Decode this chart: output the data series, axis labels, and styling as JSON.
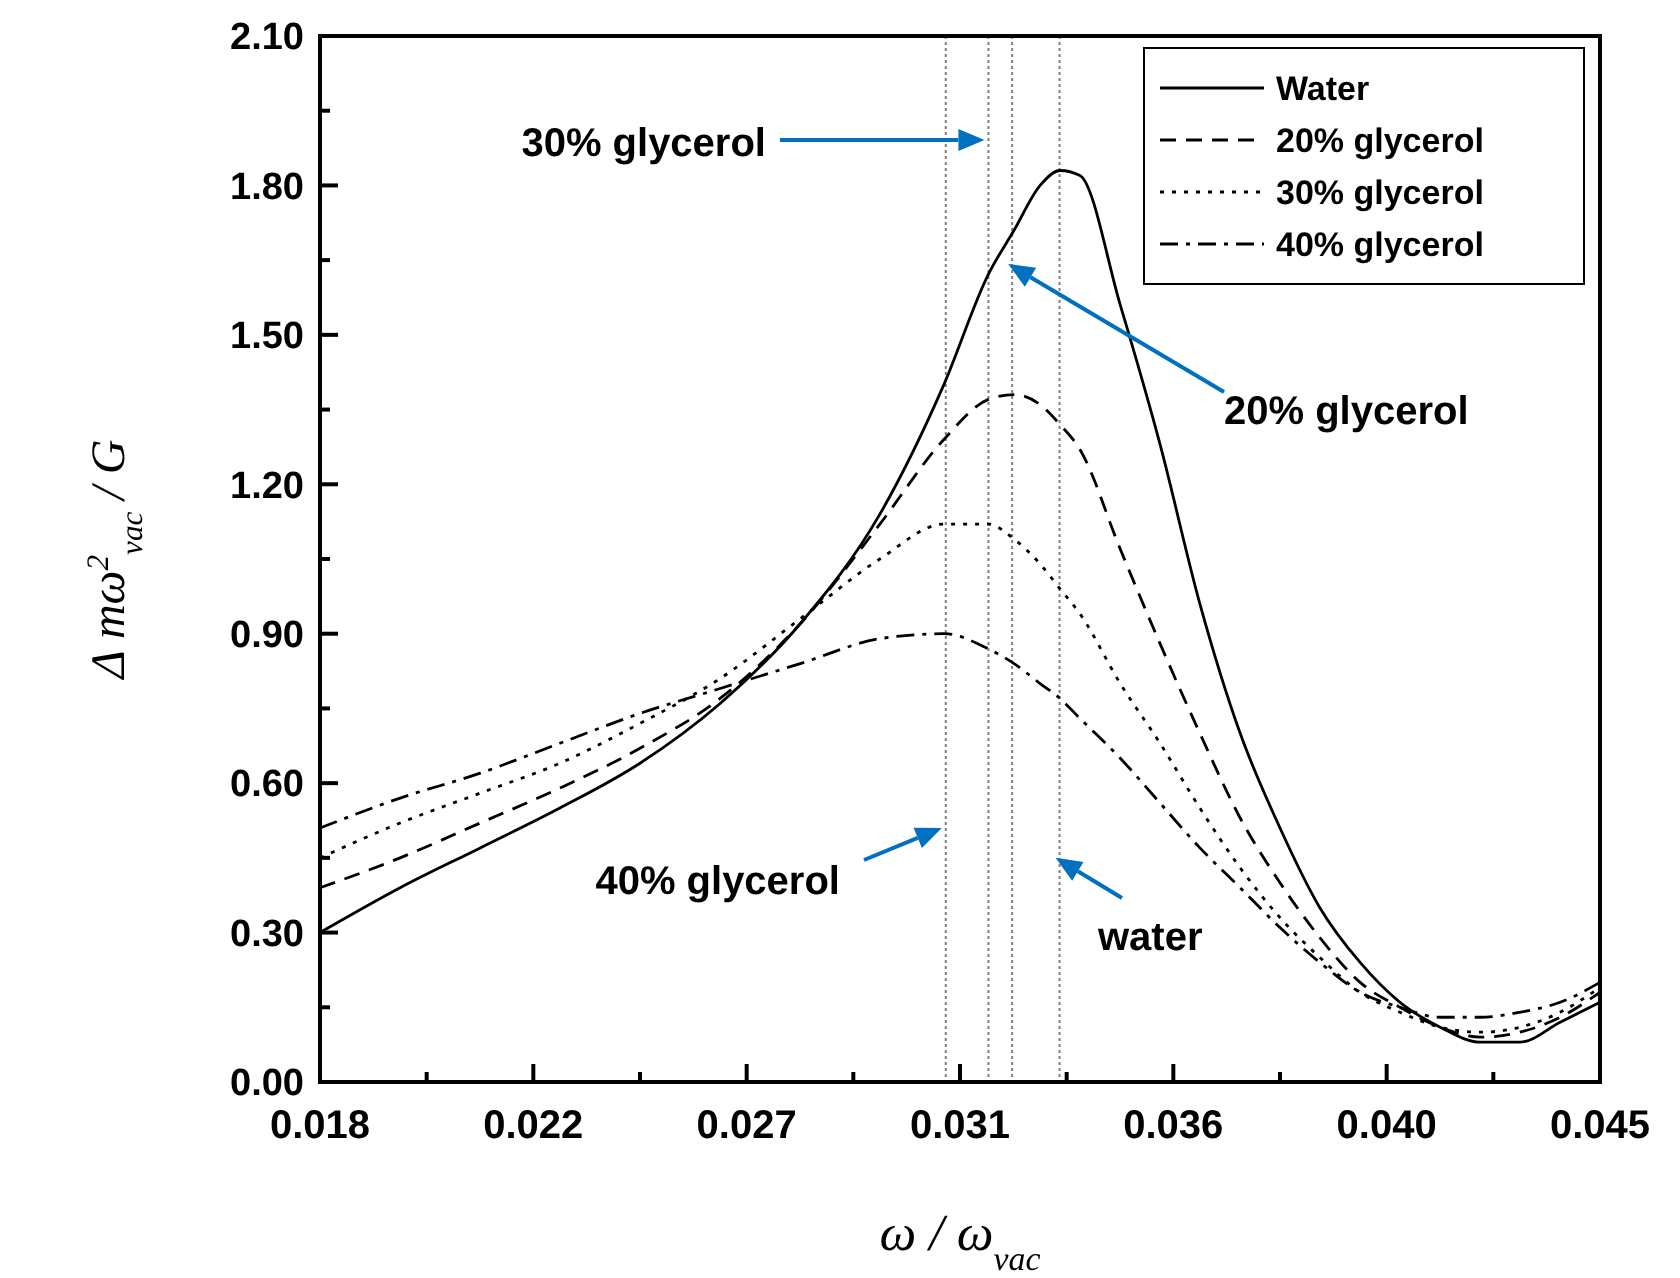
{
  "chart_data": {
    "type": "line",
    "xlabel": "ω / ω$_{vac}$",
    "ylabel": "Δ mω$^{2}$$_{vac}$ / G",
    "x": [
      0.018,
      0.01969,
      0.02138,
      0.02306,
      0.02475,
      0.02644,
      0.02813,
      0.02981,
      0.03116,
      0.03209,
      0.03264,
      0.03319,
      0.03361,
      0.03403,
      0.03488,
      0.03572,
      0.03656,
      0.03741,
      0.03825,
      0.03909,
      0.03994,
      0.04078,
      0.04163,
      0.04247,
      0.04331,
      0.04416,
      0.045
    ],
    "series": [
      {
        "name": "Water",
        "color": "#000000",
        "line_style": "solid",
        "values": [
          0.3,
          0.39,
          0.47,
          0.55,
          0.64,
          0.76,
          0.92,
          1.14,
          1.4,
          1.62,
          1.71,
          1.8,
          1.83,
          1.82,
          1.56,
          1.28,
          0.96,
          0.7,
          0.51,
          0.35,
          0.24,
          0.16,
          0.11,
          0.08,
          0.08,
          0.12,
          0.16
        ]
      },
      {
        "name": "20% glycerol",
        "color": "#000000",
        "line_style": "dashed",
        "values": [
          0.39,
          0.45,
          0.52,
          0.59,
          0.67,
          0.77,
          0.92,
          1.12,
          1.29,
          1.37,
          1.38,
          1.36,
          1.32,
          1.27,
          1.07,
          0.88,
          0.7,
          0.53,
          0.4,
          0.29,
          0.2,
          0.15,
          0.11,
          0.09,
          0.1,
          0.13,
          0.18
        ]
      },
      {
        "name": "30% glycerol",
        "color": "#000000",
        "line_style": "dotted",
        "values": [
          0.45,
          0.52,
          0.58,
          0.64,
          0.72,
          0.81,
          0.93,
          1.05,
          1.12,
          1.12,
          1.09,
          1.04,
          0.99,
          0.94,
          0.8,
          0.68,
          0.55,
          0.43,
          0.33,
          0.25,
          0.18,
          0.14,
          0.11,
          0.1,
          0.11,
          0.14,
          0.19
        ]
      },
      {
        "name": "40% glycerol",
        "color": "#000000",
        "line_style": "dashdot",
        "values": [
          0.51,
          0.57,
          0.62,
          0.68,
          0.74,
          0.79,
          0.84,
          0.89,
          0.9,
          0.87,
          0.84,
          0.8,
          0.77,
          0.73,
          0.65,
          0.56,
          0.47,
          0.39,
          0.31,
          0.24,
          0.18,
          0.15,
          0.13,
          0.13,
          0.14,
          0.16,
          0.2
        ]
      }
    ],
    "xlim": [
      0.018,
      0.045
    ],
    "xticks": [
      {
        "value": 0.018,
        "label": "0.018"
      },
      {
        "value": 0.02025,
        "label": null
      },
      {
        "value": 0.0225,
        "label": "0.022"
      },
      {
        "value": 0.02475,
        "label": null
      },
      {
        "value": 0.027,
        "label": "0.027"
      },
      {
        "value": 0.02925,
        "label": null
      },
      {
        "value": 0.0315,
        "label": "0.031"
      },
      {
        "value": 0.03375,
        "label": null
      },
      {
        "value": 0.036,
        "label": "0.036"
      },
      {
        "value": 0.03825,
        "label": null
      },
      {
        "value": 0.0405,
        "label": "0.040"
      },
      {
        "value": 0.04275,
        "label": null
      },
      {
        "value": 0.045,
        "label": "0.045"
      }
    ],
    "ylim": [
      0,
      2.1
    ],
    "yticks": [
      {
        "value": 0,
        "label": "0.00"
      },
      {
        "value": 0.15,
        "label": null
      },
      {
        "value": 0.3,
        "label": "0.30"
      },
      {
        "value": 0.45,
        "label": null
      },
      {
        "value": 0.6,
        "label": "0.60"
      },
      {
        "value": 0.75,
        "label": null
      },
      {
        "value": 0.9,
        "label": "0.90"
      },
      {
        "value": 1.05,
        "label": null
      },
      {
        "value": 1.2,
        "label": "1.20"
      },
      {
        "value": 1.35,
        "label": null
      },
      {
        "value": 1.5,
        "label": "1.50"
      },
      {
        "value": 1.65,
        "label": null
      },
      {
        "value": 1.8,
        "label": "1.80"
      },
      {
        "value": 1.95,
        "label": null
      },
      {
        "value": 2.1,
        "label": "2.10"
      }
    ],
    "ref_lines": [
      {
        "axis": "x",
        "value": 0.0312,
        "color": "#808080",
        "line_style": "dotted"
      },
      {
        "axis": "x",
        "value": 0.0321,
        "color": "#808080",
        "line_style": "dotted"
      },
      {
        "axis": "x",
        "value": 0.0326,
        "color": "#808080",
        "line_style": "dotted"
      },
      {
        "axis": "x",
        "value": 0.0336,
        "color": "#808080",
        "line_style": "dotted"
      }
    ],
    "annotations": [
      "30% glycerol",
      "20% glycerol",
      {
        "text": "40% glycerol",
        "x": 0.0312,
        "y": 0.51
      },
      {
        "text": "water",
        "x": 0.0336,
        "y": 0.45
      }
    ],
    "legend": "top right",
    "grid": false
  }
}
